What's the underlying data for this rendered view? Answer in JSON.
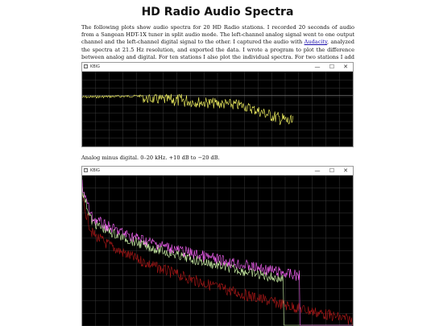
{
  "page": {
    "title": "HD Radio Audio Spectra",
    "intro_before_link": "The following plots show audio spectra for 20 HD Radio stations. I recorded 20 seconds of audio from a Sangean HDT-1X tuner in split audio mode. The left-channel analog signal went to one output channel and the left-channel digital signal to the other. I captured the audio with ",
    "intro_link": "Audacity",
    "intro_after_link": ", analyzed the spectra at 21.5 Hz resolution, and exported the data. I wrote a program to plot the difference between analog and digital. For ten stations I also plot the individual spectra. For two stations I add the source spectrum. I sampled typical program material.",
    "caption": "Analog minus digital. 0–20 kHz. +10 dB to −20 dB."
  },
  "windows": [
    {
      "title": "KBIG",
      "minimize": "—",
      "maximize": "☐",
      "close": "✕"
    },
    {
      "title": "KBIG",
      "minimize": "—",
      "maximize": "☐",
      "close": "✕"
    }
  ],
  "colors": {
    "plot_background": "#000000",
    "grid": "#3a3a3a",
    "reference_line": "#7a7a7a",
    "difference_trace": "#ffff66",
    "analog_trace": "#ff66ff",
    "digital_trace": "#d8ffb0",
    "source_trace": "#b01818"
  }
}
